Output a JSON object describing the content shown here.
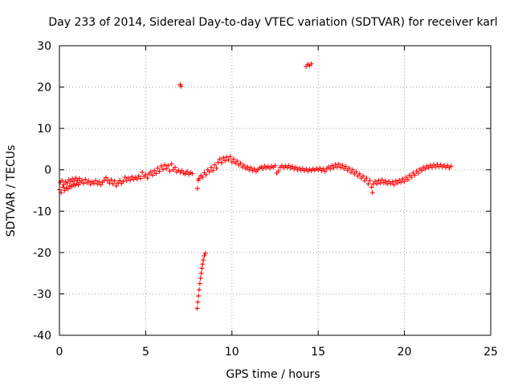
{
  "chart_data": {
    "type": "scatter",
    "title": "Day 233 of 2014, Sidereal Day-to-day VTEC variation (SDTVAR) for receiver karl",
    "xlabel": "GPS time / hours",
    "ylabel": "SDTVAR / TECUs",
    "xlim": [
      0,
      25
    ],
    "ylim": [
      -40,
      30
    ],
    "xticks": [
      0,
      5,
      10,
      15,
      20,
      25
    ],
    "yticks": [
      -40,
      -30,
      -20,
      -10,
      0,
      10,
      20,
      30
    ],
    "grid": true,
    "marker": "+",
    "color": "#ff0000",
    "series": [
      {
        "name": "SDTVAR",
        "points": [
          [
            0.0,
            -4.8
          ],
          [
            0.05,
            -3.0
          ],
          [
            0.1,
            -5.5
          ],
          [
            0.15,
            -2.6
          ],
          [
            0.2,
            -4.2
          ],
          [
            0.25,
            -3.6
          ],
          [
            0.3,
            -5.0
          ],
          [
            0.35,
            -2.9
          ],
          [
            0.4,
            -4.4
          ],
          [
            0.45,
            -3.2
          ],
          [
            0.5,
            -4.6
          ],
          [
            0.55,
            -2.4
          ],
          [
            0.6,
            -3.9
          ],
          [
            0.65,
            -2.8
          ],
          [
            0.7,
            -4.1
          ],
          [
            0.75,
            -2.2
          ],
          [
            0.8,
            -3.5
          ],
          [
            0.85,
            -2.7
          ],
          [
            0.9,
            -3.8
          ],
          [
            0.95,
            -2.0
          ],
          [
            1.0,
            -3.4
          ],
          [
            1.05,
            -2.5
          ],
          [
            1.1,
            -3.6
          ],
          [
            1.15,
            -2.1
          ],
          [
            1.2,
            -3.0
          ],
          [
            1.3,
            -2.6
          ],
          [
            1.4,
            -3.3
          ],
          [
            1.5,
            -2.3
          ],
          [
            1.6,
            -3.1
          ],
          [
            1.7,
            -2.7
          ],
          [
            1.8,
            -3.5
          ],
          [
            1.9,
            -2.9
          ],
          [
            2.0,
            -3.3
          ],
          [
            2.1,
            -2.6
          ],
          [
            2.2,
            -3.4
          ],
          [
            2.3,
            -2.9
          ],
          [
            2.4,
            -3.6
          ],
          [
            2.5,
            -3.0
          ],
          [
            2.6,
            -2.5
          ],
          [
            2.7,
            -1.9
          ],
          [
            2.8,
            -2.6
          ],
          [
            2.9,
            -3.2
          ],
          [
            3.0,
            -2.4
          ],
          [
            3.1,
            -3.4
          ],
          [
            3.2,
            -2.7
          ],
          [
            3.3,
            -3.9
          ],
          [
            3.4,
            -3.2
          ],
          [
            3.5,
            -2.6
          ],
          [
            3.6,
            -3.3
          ],
          [
            3.7,
            -2.8
          ],
          [
            3.8,
            -1.8
          ],
          [
            3.9,
            -2.6
          ],
          [
            4.0,
            -2.0
          ],
          [
            4.1,
            -2.5
          ],
          [
            4.2,
            -1.7
          ],
          [
            4.3,
            -2.3
          ],
          [
            4.4,
            -1.9
          ],
          [
            4.5,
            -2.2
          ],
          [
            4.6,
            -1.5
          ],
          [
            4.7,
            -2.1
          ],
          [
            4.8,
            -0.6
          ],
          [
            4.9,
            -1.6
          ],
          [
            5.0,
            -1.2
          ],
          [
            5.1,
            -2.0
          ],
          [
            5.2,
            -1.0
          ],
          [
            5.3,
            -0.5
          ],
          [
            5.4,
            -1.3
          ],
          [
            5.5,
            -0.2
          ],
          [
            5.6,
            -0.9
          ],
          [
            5.7,
            0.4
          ],
          [
            5.8,
            -0.4
          ],
          [
            5.9,
            0.9
          ],
          [
            6.0,
            0.1
          ],
          [
            6.1,
            1.2
          ],
          [
            6.2,
            0.3
          ],
          [
            6.3,
            1.0
          ],
          [
            6.4,
            -0.3
          ],
          [
            6.5,
            1.4
          ],
          [
            6.6,
            0.0
          ],
          [
            6.7,
            0.6
          ],
          [
            6.8,
            -0.5
          ],
          [
            6.9,
            -0.1
          ],
          [
            7.0,
            -0.6
          ],
          [
            7.1,
            -0.2
          ],
          [
            7.2,
            -0.8
          ],
          [
            7.3,
            -1.0
          ],
          [
            7.4,
            -0.4
          ],
          [
            7.5,
            -1.1
          ],
          [
            7.6,
            -0.7
          ],
          [
            7.7,
            -0.9
          ],
          [
            8.0,
            -4.5
          ],
          [
            8.05,
            -2.5
          ],
          [
            8.1,
            -2.1
          ],
          [
            8.2,
            -1.4
          ],
          [
            8.3,
            -1.8
          ],
          [
            8.4,
            -0.7
          ],
          [
            8.5,
            -1.2
          ],
          [
            8.6,
            0.0
          ],
          [
            8.7,
            -0.5
          ],
          [
            8.8,
            0.6
          ],
          [
            8.9,
            -0.2
          ],
          [
            9.0,
            1.2
          ],
          [
            9.1,
            0.4
          ],
          [
            9.2,
            1.8
          ],
          [
            9.3,
            2.6
          ],
          [
            9.4,
            1.7
          ],
          [
            9.5,
            2.9
          ],
          [
            9.6,
            2.2
          ],
          [
            9.7,
            3.1
          ],
          [
            9.8,
            2.4
          ],
          [
            9.9,
            3.2
          ],
          [
            10.0,
            1.9
          ],
          [
            10.1,
            2.6
          ],
          [
            10.2,
            1.6
          ],
          [
            10.3,
            2.1
          ],
          [
            10.4,
            1.2
          ],
          [
            10.5,
            1.6
          ],
          [
            10.6,
            0.7
          ],
          [
            10.7,
            1.1
          ],
          [
            10.8,
            0.3
          ],
          [
            10.9,
            0.7
          ],
          [
            11.0,
            0.0
          ],
          [
            11.1,
            0.5
          ],
          [
            11.2,
            -0.2
          ],
          [
            11.3,
            0.2
          ],
          [
            11.4,
            -0.4
          ],
          [
            11.5,
            0.0
          ],
          [
            11.6,
            0.4
          ],
          [
            11.7,
            0.7
          ],
          [
            11.8,
            0.3
          ],
          [
            11.9,
            0.9
          ],
          [
            12.0,
            0.5
          ],
          [
            12.1,
            0.8
          ],
          [
            12.2,
            0.4
          ],
          [
            12.3,
            0.9
          ],
          [
            12.4,
            0.6
          ],
          [
            12.5,
            1.0
          ],
          [
            12.6,
            -0.8
          ],
          [
            12.7,
            -0.3
          ],
          [
            12.8,
            0.6
          ],
          [
            12.9,
            1.0
          ],
          [
            13.0,
            0.5
          ],
          [
            13.1,
            0.9
          ],
          [
            13.2,
            0.6
          ],
          [
            13.3,
            1.0
          ],
          [
            13.4,
            0.4
          ],
          [
            13.5,
            0.8
          ],
          [
            13.6,
            0.2
          ],
          [
            13.7,
            0.6
          ],
          [
            13.8,
            0.0
          ],
          [
            13.9,
            0.4
          ],
          [
            14.0,
            -0.1
          ],
          [
            14.1,
            0.3
          ],
          [
            14.2,
            -0.2
          ],
          [
            14.3,
            0.2
          ],
          [
            14.4,
            -0.3
          ],
          [
            14.5,
            0.1
          ],
          [
            14.6,
            -0.2
          ],
          [
            14.7,
            0.2
          ],
          [
            14.8,
            -0.1
          ],
          [
            14.9,
            0.3
          ],
          [
            15.0,
            0.0
          ],
          [
            15.1,
            0.4
          ],
          [
            15.2,
            -0.2
          ],
          [
            15.3,
            0.2
          ],
          [
            15.4,
            -0.4
          ],
          [
            15.5,
            0.3
          ],
          [
            15.6,
            0.7
          ],
          [
            15.7,
            0.2
          ],
          [
            15.8,
            1.0
          ],
          [
            15.9,
            0.5
          ],
          [
            16.0,
            1.3
          ],
          [
            16.1,
            0.7
          ],
          [
            16.2,
            1.4
          ],
          [
            16.3,
            0.6
          ],
          [
            16.4,
            1.1
          ],
          [
            16.5,
            0.3
          ],
          [
            16.6,
            0.8
          ],
          [
            16.7,
            -0.1
          ],
          [
            16.8,
            0.4
          ],
          [
            16.9,
            -0.6
          ],
          [
            17.0,
            0.0
          ],
          [
            17.1,
            -1.0
          ],
          [
            17.2,
            -0.5
          ],
          [
            17.3,
            -1.5
          ],
          [
            17.4,
            -1.0
          ],
          [
            17.5,
            -2.0
          ],
          [
            17.6,
            -1.5
          ],
          [
            17.7,
            -2.6
          ],
          [
            17.8,
            -2.0
          ],
          [
            17.9,
            -3.4
          ],
          [
            18.0,
            -2.6
          ],
          [
            18.1,
            -4.2
          ],
          [
            18.15,
            -5.5
          ],
          [
            18.2,
            -3.4
          ],
          [
            18.3,
            -2.8
          ],
          [
            18.4,
            -3.4
          ],
          [
            18.5,
            -2.6
          ],
          [
            18.6,
            -3.2
          ],
          [
            18.7,
            -2.4
          ],
          [
            18.8,
            -3.1
          ],
          [
            18.9,
            -2.7
          ],
          [
            19.0,
            -3.4
          ],
          [
            19.1,
            -2.8
          ],
          [
            19.2,
            -3.3
          ],
          [
            19.3,
            -2.9
          ],
          [
            19.4,
            -3.6
          ],
          [
            19.5,
            -2.7
          ],
          [
            19.6,
            -3.2
          ],
          [
            19.7,
            -2.5
          ],
          [
            19.8,
            -3.0
          ],
          [
            19.9,
            -2.2
          ],
          [
            20.0,
            -2.8
          ],
          [
            20.1,
            -1.8
          ],
          [
            20.2,
            -2.4
          ],
          [
            20.3,
            -1.3
          ],
          [
            20.4,
            -1.8
          ],
          [
            20.5,
            -0.8
          ],
          [
            20.6,
            -1.3
          ],
          [
            20.7,
            -0.3
          ],
          [
            20.8,
            -0.8
          ],
          [
            20.9,
            0.2
          ],
          [
            21.0,
            -0.2
          ],
          [
            21.1,
            0.6
          ],
          [
            21.2,
            0.2
          ],
          [
            21.3,
            0.9
          ],
          [
            21.4,
            0.5
          ],
          [
            21.5,
            1.1
          ],
          [
            21.6,
            0.6
          ],
          [
            21.7,
            1.2
          ],
          [
            21.8,
            0.7
          ],
          [
            21.9,
            1.3
          ],
          [
            22.0,
            0.8
          ],
          [
            22.1,
            1.2
          ],
          [
            22.2,
            0.7
          ],
          [
            22.3,
            1.1
          ],
          [
            22.4,
            0.6
          ],
          [
            22.5,
            1.0
          ],
          [
            22.6,
            0.5
          ],
          [
            22.7,
            0.9
          ],
          [
            7.0,
            20.6
          ],
          [
            7.05,
            20.2
          ],
          [
            14.3,
            25.0
          ],
          [
            14.4,
            25.5
          ],
          [
            14.5,
            25.2
          ],
          [
            14.6,
            25.6
          ],
          [
            7.98,
            -33.5
          ],
          [
            8.02,
            -32.0
          ],
          [
            8.06,
            -30.5
          ],
          [
            8.1,
            -29.0
          ],
          [
            8.14,
            -27.5
          ],
          [
            8.18,
            -26.2
          ],
          [
            8.22,
            -25.0
          ],
          [
            8.26,
            -23.8
          ],
          [
            8.3,
            -22.8
          ],
          [
            8.34,
            -21.8
          ],
          [
            8.4,
            -20.8
          ],
          [
            8.46,
            -20.2
          ]
        ]
      }
    ]
  }
}
